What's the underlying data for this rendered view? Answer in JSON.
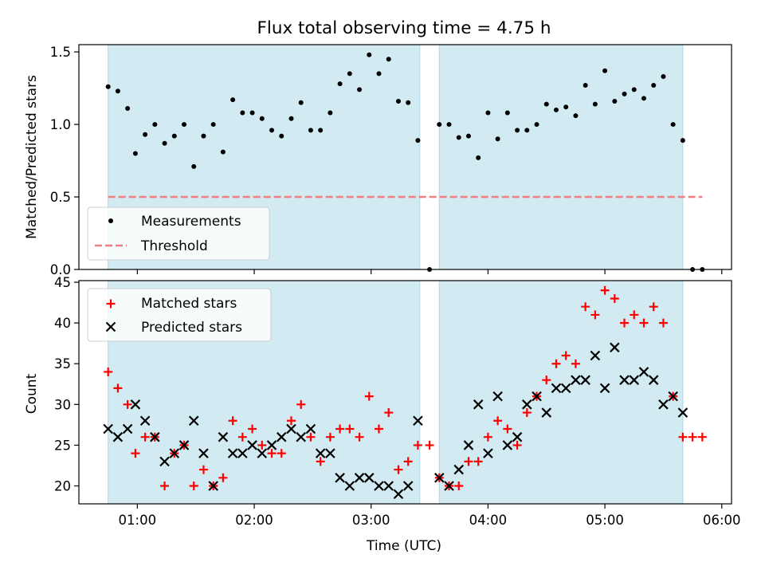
{
  "title": "Flux total observing time = 4.75 h",
  "colors": {
    "background_span": "#add8e6",
    "measurement": "#000000",
    "threshold": "#f08080",
    "matched": "#ff0000",
    "predicted": "#000000"
  },
  "chart_data": [
    {
      "type": "scatter",
      "ylabel": "Matched/Predicted stars",
      "ylim": [
        0,
        1.55
      ],
      "yticks": [
        0.0,
        0.5,
        1.0,
        1.5
      ],
      "ytick_labels": [
        "0.0",
        "0.5",
        "1.0",
        "1.5"
      ],
      "xlim": [
        "00:30",
        "06:05"
      ],
      "shaded_spans": [
        [
          "00:45",
          "03:25"
        ],
        [
          "03:35",
          "05:40"
        ]
      ],
      "legend": {
        "position": "lower-left",
        "entries": [
          "Measurements",
          "Threshold"
        ]
      },
      "threshold": {
        "name": "Threshold",
        "value": 0.5,
        "x_range": [
          "00:45",
          "05:50"
        ],
        "style": "dashed"
      },
      "series": [
        {
          "name": "Measurements",
          "marker": "dot",
          "points": [
            [
              "00:45",
              1.26
            ],
            [
              "00:50",
              1.23
            ],
            [
              "00:55",
              1.11
            ],
            [
              "00:59",
              0.8
            ],
            [
              "01:04",
              0.93
            ],
            [
              "01:09",
              1.0
            ],
            [
              "01:14",
              0.87
            ],
            [
              "01:19",
              0.92
            ],
            [
              "01:24",
              1.0
            ],
            [
              "01:29",
              0.71
            ],
            [
              "01:34",
              0.92
            ],
            [
              "01:39",
              1.0
            ],
            [
              "01:44",
              0.81
            ],
            [
              "01:49",
              1.17
            ],
            [
              "01:54",
              1.08
            ],
            [
              "01:59",
              1.08
            ],
            [
              "02:04",
              1.04
            ],
            [
              "02:09",
              0.96
            ],
            [
              "02:14",
              0.92
            ],
            [
              "02:19",
              1.04
            ],
            [
              "02:24",
              1.15
            ],
            [
              "02:29",
              0.96
            ],
            [
              "02:34",
              0.96
            ],
            [
              "02:39",
              1.08
            ],
            [
              "02:44",
              1.28
            ],
            [
              "02:49",
              1.35
            ],
            [
              "02:54",
              1.24
            ],
            [
              "02:59",
              1.48
            ],
            [
              "03:04",
              1.35
            ],
            [
              "03:09",
              1.45
            ],
            [
              "03:14",
              1.16
            ],
            [
              "03:19",
              1.15
            ],
            [
              "03:24",
              0.89
            ],
            [
              "03:30",
              0.0
            ],
            [
              "03:35",
              1.0
            ],
            [
              "03:40",
              1.0
            ],
            [
              "03:45",
              0.91
            ],
            [
              "03:50",
              0.92
            ],
            [
              "03:55",
              0.77
            ],
            [
              "04:00",
              1.08
            ],
            [
              "04:05",
              0.9
            ],
            [
              "04:10",
              1.08
            ],
            [
              "04:15",
              0.96
            ],
            [
              "04:20",
              0.96
            ],
            [
              "04:25",
              1.0
            ],
            [
              "04:30",
              1.14
            ],
            [
              "04:35",
              1.1
            ],
            [
              "04:40",
              1.12
            ],
            [
              "04:45",
              1.06
            ],
            [
              "04:50",
              1.27
            ],
            [
              "04:55",
              1.14
            ],
            [
              "05:00",
              1.37
            ],
            [
              "05:05",
              1.16
            ],
            [
              "05:10",
              1.21
            ],
            [
              "05:15",
              1.24
            ],
            [
              "05:20",
              1.18
            ],
            [
              "05:25",
              1.27
            ],
            [
              "05:30",
              1.33
            ],
            [
              "05:35",
              1.0
            ],
            [
              "05:40",
              0.89
            ],
            [
              "05:45",
              0.0
            ],
            [
              "05:50",
              0.0
            ]
          ]
        }
      ]
    },
    {
      "type": "scatter",
      "xlabel": "Time (UTC)",
      "ylabel": "Count",
      "ylim": [
        17.8,
        45.2
      ],
      "yticks": [
        20,
        25,
        30,
        35,
        40,
        45
      ],
      "ytick_labels": [
        "20",
        "25",
        "30",
        "35",
        "40",
        "45"
      ],
      "xlim": [
        "00:30",
        "06:05"
      ],
      "xticks": [
        "01:00",
        "02:00",
        "03:00",
        "04:00",
        "05:00",
        "06:00"
      ],
      "xtick_labels": [
        "01:00",
        "02:00",
        "03:00",
        "04:00",
        "05:00",
        "06:00"
      ],
      "shaded_spans": [
        [
          "00:45",
          "03:25"
        ],
        [
          "03:35",
          "05:40"
        ]
      ],
      "legend": {
        "position": "upper-left",
        "entries": [
          "Matched stars",
          "Predicted stars"
        ]
      },
      "series": [
        {
          "name": "Matched stars",
          "marker": "plus",
          "points": [
            [
              "00:45",
              34
            ],
            [
              "00:50",
              32
            ],
            [
              "00:55",
              30
            ],
            [
              "00:59",
              24
            ],
            [
              "01:04",
              26
            ],
            [
              "01:09",
              26
            ],
            [
              "01:14",
              20
            ],
            [
              "01:19",
              24
            ],
            [
              "01:24",
              25
            ],
            [
              "01:29",
              20
            ],
            [
              "01:34",
              22
            ],
            [
              "01:39",
              20
            ],
            [
              "01:44",
              21
            ],
            [
              "01:49",
              28
            ],
            [
              "01:54",
              26
            ],
            [
              "01:59",
              27
            ],
            [
              "02:04",
              25
            ],
            [
              "02:09",
              24
            ],
            [
              "02:14",
              24
            ],
            [
              "02:19",
              28
            ],
            [
              "02:24",
              30
            ],
            [
              "02:29",
              26
            ],
            [
              "02:34",
              23
            ],
            [
              "02:39",
              26
            ],
            [
              "02:44",
              27
            ],
            [
              "02:49",
              27
            ],
            [
              "02:54",
              26
            ],
            [
              "02:59",
              31
            ],
            [
              "03:04",
              27
            ],
            [
              "03:09",
              29
            ],
            [
              "03:14",
              22
            ],
            [
              "03:19",
              23
            ],
            [
              "03:24",
              25
            ],
            [
              "03:30",
              25
            ],
            [
              "03:35",
              21
            ],
            [
              "03:40",
              20
            ],
            [
              "03:45",
              20
            ],
            [
              "03:50",
              23
            ],
            [
              "03:55",
              23
            ],
            [
              "04:00",
              26
            ],
            [
              "04:05",
              28
            ],
            [
              "04:10",
              27
            ],
            [
              "04:15",
              25
            ],
            [
              "04:20",
              29
            ],
            [
              "04:25",
              31
            ],
            [
              "04:30",
              33
            ],
            [
              "04:35",
              35
            ],
            [
              "04:40",
              36
            ],
            [
              "04:45",
              35
            ],
            [
              "04:50",
              42
            ],
            [
              "04:55",
              41
            ],
            [
              "05:00",
              44
            ],
            [
              "05:05",
              43
            ],
            [
              "05:10",
              40
            ],
            [
              "05:15",
              41
            ],
            [
              "05:20",
              40
            ],
            [
              "05:25",
              42
            ],
            [
              "05:30",
              40
            ],
            [
              "05:35",
              31
            ],
            [
              "05:40",
              26
            ],
            [
              "05:45",
              26
            ],
            [
              "05:50",
              26
            ]
          ]
        },
        {
          "name": "Predicted stars",
          "marker": "x",
          "points": [
            [
              "00:45",
              27
            ],
            [
              "00:50",
              26
            ],
            [
              "00:55",
              27
            ],
            [
              "00:59",
              30
            ],
            [
              "01:04",
              28
            ],
            [
              "01:09",
              26
            ],
            [
              "01:14",
              23
            ],
            [
              "01:19",
              24
            ],
            [
              "01:24",
              25
            ],
            [
              "01:29",
              28
            ],
            [
              "01:34",
              24
            ],
            [
              "01:39",
              20
            ],
            [
              "01:44",
              26
            ],
            [
              "01:49",
              24
            ],
            [
              "01:54",
              24
            ],
            [
              "01:59",
              25
            ],
            [
              "02:04",
              24
            ],
            [
              "02:09",
              25
            ],
            [
              "02:14",
              26
            ],
            [
              "02:19",
              27
            ],
            [
              "02:24",
              26
            ],
            [
              "02:29",
              27
            ],
            [
              "02:34",
              24
            ],
            [
              "02:39",
              24
            ],
            [
              "02:44",
              21
            ],
            [
              "02:49",
              20
            ],
            [
              "02:54",
              21
            ],
            [
              "02:59",
              21
            ],
            [
              "03:04",
              20
            ],
            [
              "03:09",
              20
            ],
            [
              "03:14",
              19
            ],
            [
              "03:19",
              20
            ],
            [
              "03:24",
              28
            ],
            [
              "03:35",
              21
            ],
            [
              "03:40",
              20
            ],
            [
              "03:45",
              22
            ],
            [
              "03:50",
              25
            ],
            [
              "03:55",
              30
            ],
            [
              "04:00",
              24
            ],
            [
              "04:05",
              31
            ],
            [
              "04:10",
              25
            ],
            [
              "04:15",
              26
            ],
            [
              "04:20",
              30
            ],
            [
              "04:25",
              31
            ],
            [
              "04:30",
              29
            ],
            [
              "04:35",
              32
            ],
            [
              "04:40",
              32
            ],
            [
              "04:45",
              33
            ],
            [
              "04:50",
              33
            ],
            [
              "04:55",
              36
            ],
            [
              "05:00",
              32
            ],
            [
              "05:05",
              37
            ],
            [
              "05:10",
              33
            ],
            [
              "05:15",
              33
            ],
            [
              "05:20",
              34
            ],
            [
              "05:25",
              33
            ],
            [
              "05:30",
              30
            ],
            [
              "05:35",
              31
            ],
            [
              "05:40",
              29
            ]
          ]
        }
      ]
    }
  ]
}
